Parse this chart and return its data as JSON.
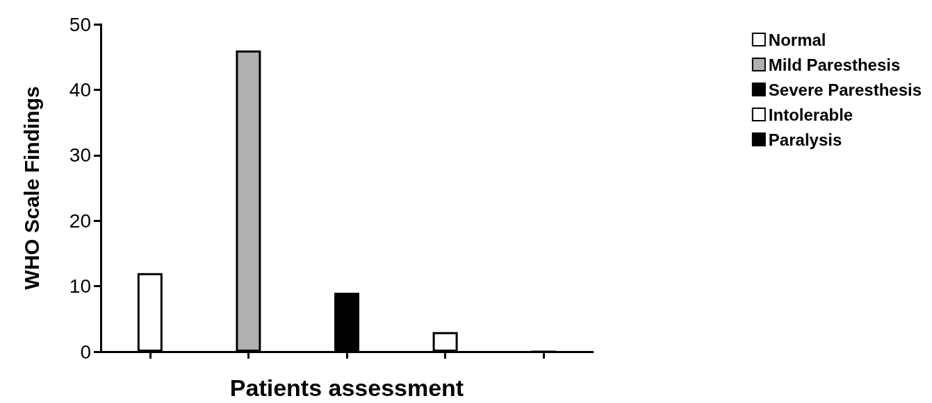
{
  "chart_data": {
    "type": "bar",
    "xlabel": "Patients assessment",
    "ylabel": "WHO Scale Findings",
    "categories": [
      null,
      null,
      null,
      null,
      null
    ],
    "series": [
      {
        "name": "Normal",
        "color": "#ffffff",
        "values": [
          12,
          null,
          null,
          null,
          null
        ]
      },
      {
        "name": "Mild Paresthesis",
        "color": "#b0b0b0",
        "values": [
          null,
          46,
          null,
          null,
          null
        ]
      },
      {
        "name": "Severe Paresthesis",
        "color": "#000000",
        "values": [
          null,
          null,
          9,
          null,
          null
        ]
      },
      {
        "name": "Intolerable",
        "color": "#ffffff",
        "values": [
          null,
          null,
          null,
          3,
          null
        ]
      },
      {
        "name": "Paralysis",
        "color": "#000000",
        "values": [
          null,
          null,
          null,
          null,
          0
        ]
      }
    ],
    "ylim": [
      0,
      50
    ],
    "yticks": [
      0,
      10,
      20,
      30,
      40,
      50
    ],
    "grid": false,
    "legend": "right"
  }
}
